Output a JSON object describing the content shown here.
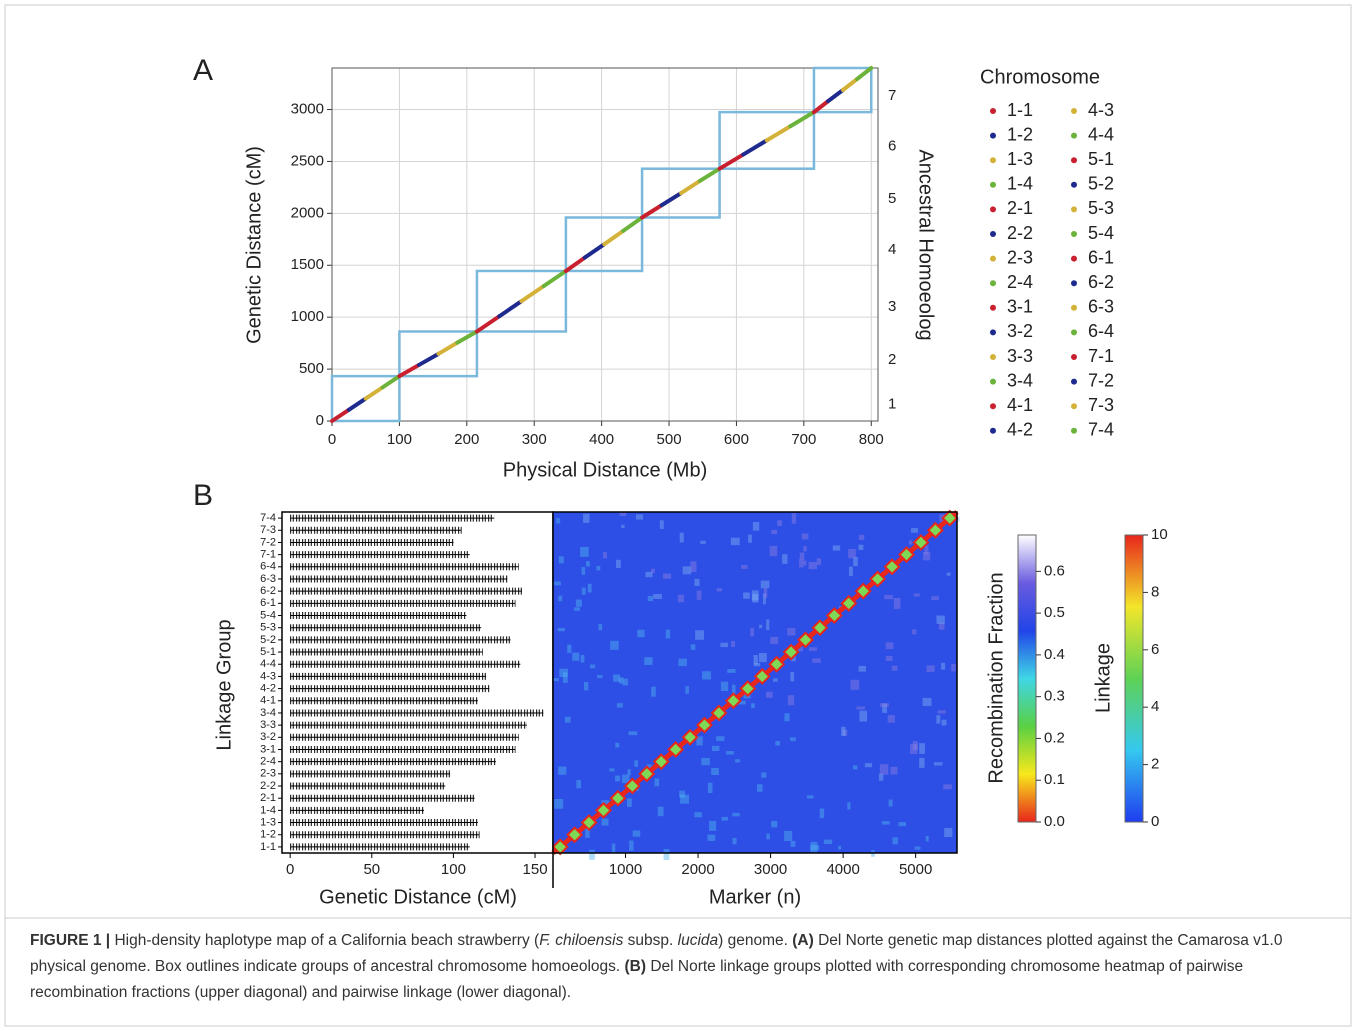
{
  "chart_data": [
    {
      "panel": "A",
      "type": "scatter",
      "x_label": "Physical Distance (Mb)",
      "y_label": "Genetic Distance (cM)",
      "y2_label": "Ancestral Homoeolog",
      "legend_title": "Chromosome",
      "xlim": [
        0,
        810
      ],
      "xticks": [
        0,
        100,
        200,
        300,
        400,
        500,
        600,
        700,
        800
      ],
      "ylim": [
        0,
        3400
      ],
      "yticks": [
        0,
        500,
        1000,
        1500,
        2000,
        2500,
        3000
      ],
      "grid": true,
      "homoeologs": {
        "categories": [
          "1",
          "2",
          "3",
          "4",
          "5",
          "6",
          "7"
        ],
        "color": "#7ab8dc",
        "x_bounds": [
          0,
          100,
          215,
          347,
          460,
          575,
          715,
          800
        ],
        "y_bounds": [
          0,
          432,
          862,
          1445,
          1960,
          2430,
          2975,
          3400
        ]
      },
      "series": [
        {
          "name": "1-1",
          "color": "#c8202f",
          "x": [
            0,
            25
          ],
          "values": [
            0,
            108
          ]
        },
        {
          "name": "1-2",
          "color": "#1f2a8f",
          "x": [
            25,
            50
          ],
          "values": [
            108,
            216
          ]
        },
        {
          "name": "1-3",
          "color": "#d4b23a",
          "x": [
            50,
            75
          ],
          "values": [
            216,
            324
          ]
        },
        {
          "name": "1-4",
          "color": "#6bb33a",
          "x": [
            75,
            100
          ],
          "values": [
            324,
            432
          ]
        },
        {
          "name": "2-1",
          "color": "#c8202f",
          "x": [
            100,
            129
          ],
          "values": [
            432,
            540
          ]
        },
        {
          "name": "2-2",
          "color": "#1f2a8f",
          "x": [
            129,
            158
          ],
          "values": [
            540,
            647
          ]
        },
        {
          "name": "2-3",
          "color": "#d4b23a",
          "x": [
            158,
            186
          ],
          "values": [
            647,
            755
          ]
        },
        {
          "name": "2-4",
          "color": "#6bb33a",
          "x": [
            186,
            215
          ],
          "values": [
            755,
            862
          ]
        },
        {
          "name": "3-1",
          "color": "#c8202f",
          "x": [
            215,
            248
          ],
          "values": [
            862,
            1008
          ]
        },
        {
          "name": "3-2",
          "color": "#1f2a8f",
          "x": [
            248,
            281
          ],
          "values": [
            1008,
            1154
          ]
        },
        {
          "name": "3-3",
          "color": "#d4b23a",
          "x": [
            281,
            314
          ],
          "values": [
            1154,
            1299
          ]
        },
        {
          "name": "3-4",
          "color": "#6bb33a",
          "x": [
            314,
            347
          ],
          "values": [
            1299,
            1445
          ]
        },
        {
          "name": "4-1",
          "color": "#c8202f",
          "x": [
            347,
            375
          ],
          "values": [
            1445,
            1574
          ]
        },
        {
          "name": "4-2",
          "color": "#1f2a8f",
          "x": [
            375,
            404
          ],
          "values": [
            1574,
            1703
          ]
        },
        {
          "name": "4-3",
          "color": "#d4b23a",
          "x": [
            404,
            432
          ],
          "values": [
            1703,
            1831
          ]
        },
        {
          "name": "4-4",
          "color": "#6bb33a",
          "x": [
            432,
            460
          ],
          "values": [
            1831,
            1960
          ]
        },
        {
          "name": "5-1",
          "color": "#c8202f",
          "x": [
            460,
            489
          ],
          "values": [
            1960,
            2078
          ]
        },
        {
          "name": "5-2",
          "color": "#1f2a8f",
          "x": [
            489,
            518
          ],
          "values": [
            2078,
            2195
          ]
        },
        {
          "name": "5-3",
          "color": "#d4b23a",
          "x": [
            518,
            546
          ],
          "values": [
            2195,
            2313
          ]
        },
        {
          "name": "5-4",
          "color": "#6bb33a",
          "x": [
            546,
            575
          ],
          "values": [
            2313,
            2430
          ]
        },
        {
          "name": "6-1",
          "color": "#c8202f",
          "x": [
            575,
            610
          ],
          "values": [
            2430,
            2566
          ]
        },
        {
          "name": "6-2",
          "color": "#1f2a8f",
          "x": [
            610,
            645
          ],
          "values": [
            2566,
            2703
          ]
        },
        {
          "name": "6-3",
          "color": "#d4b23a",
          "x": [
            645,
            680
          ],
          "values": [
            2703,
            2839
          ]
        },
        {
          "name": "6-4",
          "color": "#6bb33a",
          "x": [
            680,
            715
          ],
          "values": [
            2839,
            2975
          ]
        },
        {
          "name": "7-1",
          "color": "#c8202f",
          "x": [
            715,
            736
          ],
          "values": [
            2975,
            3081
          ]
        },
        {
          "name": "7-2",
          "color": "#1f2a8f",
          "x": [
            736,
            758
          ],
          "values": [
            3081,
            3188
          ]
        },
        {
          "name": "7-3",
          "color": "#d4b23a",
          "x": [
            758,
            779
          ],
          "values": [
            3188,
            3294
          ]
        },
        {
          "name": "7-4",
          "color": "#6bb33a",
          "x": [
            779,
            800
          ],
          "values": [
            3294,
            3400
          ]
        }
      ]
    },
    {
      "panel": "B",
      "type": "linkage",
      "x_label": "Genetic Distance (cM)",
      "y_label": "Linkage Group",
      "categories": [
        "1-1",
        "1-2",
        "1-3",
        "1-4",
        "2-1",
        "2-2",
        "2-3",
        "2-4",
        "3-1",
        "3-2",
        "3-3",
        "3-4",
        "4-1",
        "4-2",
        "4-3",
        "4-4",
        "5-1",
        "5-2",
        "5-3",
        "5-4",
        "6-1",
        "6-2",
        "6-3",
        "6-4",
        "7-1",
        "7-2",
        "7-3",
        "7-4"
      ],
      "values": [
        110,
        116,
        115,
        82,
        113,
        95,
        98,
        126,
        138,
        140,
        145,
        155,
        115,
        122,
        120,
        141,
        118,
        135,
        117,
        108,
        138,
        142,
        133,
        140,
        110,
        100,
        105,
        125
      ],
      "xlim": [
        -5,
        161
      ],
      "xticks": [
        0,
        50,
        100,
        150
      ],
      "color": "#000000"
    },
    {
      "type": "heatmap",
      "x_label": "Marker (n)",
      "xlim": [
        0,
        5570
      ],
      "xticks": [
        1000,
        2000,
        3000,
        4000,
        5000
      ],
      "colorbars": [
        {
          "label": "Recombination Fraction",
          "ylim": [
            0,
            0.687
          ],
          "yticks": [
            {
              "value": 0,
              "label": "0.0"
            },
            0.1,
            0.2,
            0.3,
            0.4,
            0.5,
            0.6
          ],
          "colors": [
            "#e8261c",
            "#f7e81c",
            "#5ad043",
            "#3fd6e6",
            "#2244e8",
            "#6a5ce0",
            "#ffffff"
          ]
        },
        {
          "label": "Linkage",
          "ylim": [
            0,
            10
          ],
          "yticks": [
            0,
            2,
            4,
            6,
            8,
            10
          ],
          "colors": [
            "#1f3cf0",
            "#35c8f0",
            "#5ed255",
            "#f2e62a",
            "#e8261c"
          ]
        }
      ]
    }
  ],
  "caption": [
    "FIGURE 1 | ",
    "High-density haplotype map of a California beach strawberry (",
    "F. chiloensis",
    " subsp. ",
    "lucida",
    ") genome. ",
    "(A)",
    " Del Norte genetic map distances plotted against the Camarosa v1.0 physical genome. Box outlines indicate groups of ancestral chromosome homoeologs. ",
    "(B)",
    " Del Norte linkage groups plotted with corresponding chromosome heatmap of pairwise recombination fractions (upper diagonal) and pairwise linkage (lower diagonal)."
  ]
}
